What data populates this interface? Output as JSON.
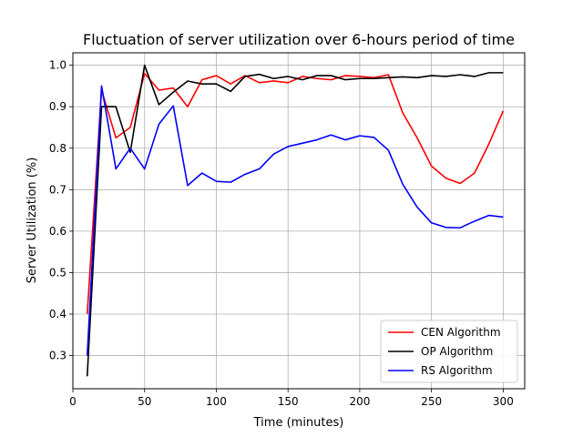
{
  "chart_data": {
    "type": "line",
    "title": "Fluctuation of server utilization over 6-hours period of time",
    "xlabel": "Time (minutes)",
    "ylabel": "Server Utilization (%)",
    "xlim": [
      0,
      315
    ],
    "ylim": [
      0.22,
      1.03
    ],
    "grid": true,
    "legend_position": "lower-right",
    "x_ticks": [
      0,
      50,
      100,
      150,
      200,
      250,
      300
    ],
    "y_ticks": [
      0.3,
      0.4,
      0.5,
      0.6,
      0.7,
      0.8,
      0.9,
      1.0
    ],
    "x_tick_labels": [
      "0",
      "50",
      "100",
      "150",
      "200",
      "250",
      "300"
    ],
    "y_tick_labels": [
      "0.3",
      "0.4",
      "0.5",
      "0.6",
      "0.7",
      "0.8",
      "0.9",
      "1.0"
    ],
    "x": [
      10,
      20,
      30,
      40,
      50,
      60,
      70,
      80,
      90,
      100,
      110,
      120,
      130,
      140,
      150,
      160,
      170,
      180,
      190,
      200,
      210,
      220,
      230,
      240,
      250,
      260,
      270,
      280,
      290,
      300
    ],
    "series": [
      {
        "name": "CEN Algorithm",
        "color": "#ff0000",
        "values": [
          0.4,
          0.94,
          0.825,
          0.85,
          0.98,
          0.94,
          0.945,
          0.9,
          0.965,
          0.975,
          0.955,
          0.975,
          0.958,
          0.962,
          0.958,
          0.973,
          0.968,
          0.965,
          0.975,
          0.973,
          0.97,
          0.977,
          0.885,
          0.825,
          0.757,
          0.728,
          0.715,
          0.74,
          0.81,
          0.89
        ]
      },
      {
        "name": "OP Algorithm",
        "color": "#000000",
        "values": [
          0.25,
          0.9,
          0.9,
          0.79,
          1.0,
          0.905,
          0.935,
          0.962,
          0.955,
          0.955,
          0.937,
          0.973,
          0.978,
          0.968,
          0.973,
          0.965,
          0.975,
          0.975,
          0.965,
          0.968,
          0.968,
          0.97,
          0.972,
          0.97,
          0.975,
          0.973,
          0.977,
          0.973,
          0.982,
          0.982
        ]
      },
      {
        "name": "RS Algorithm",
        "color": "#0000ff",
        "values": [
          0.3,
          0.95,
          0.75,
          0.8,
          0.75,
          0.858,
          0.902,
          0.71,
          0.74,
          0.72,
          0.718,
          0.737,
          0.75,
          0.786,
          0.804,
          0.812,
          0.82,
          0.832,
          0.82,
          0.83,
          0.826,
          0.795,
          0.713,
          0.658,
          0.62,
          0.609,
          0.608,
          0.624,
          0.638,
          0.634
        ]
      }
    ]
  }
}
